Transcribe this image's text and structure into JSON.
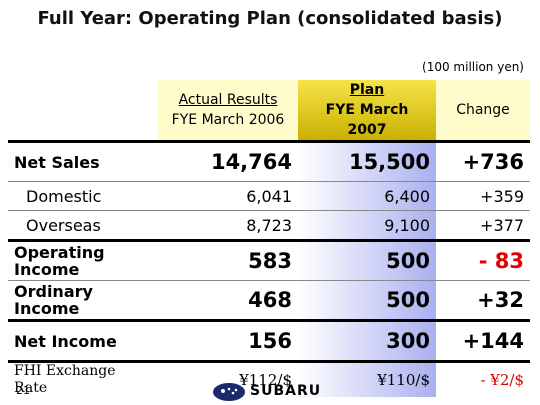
{
  "header": {
    "title": "Full Year: Operating Plan (consolidated basis)",
    "unit": "(100 million yen)"
  },
  "table": {
    "columns": [
      {
        "line1": "Actual Results",
        "line2": "FYE March 2006"
      },
      {
        "line1": "Plan",
        "line2": "FYE March 2007"
      },
      "Change"
    ],
    "rows": [
      [
        "Net Sales",
        "14,764",
        "15,500",
        "+736"
      ],
      [
        "Domestic",
        "6,041",
        "6,400",
        "+359"
      ],
      [
        "Overseas",
        "8,723",
        "9,100",
        "+377"
      ],
      [
        "Operating Income",
        "583",
        "500",
        "- 83"
      ],
      [
        "Ordinary Income",
        "468",
        "500",
        "+32"
      ],
      [
        "Net Income",
        "156",
        "300",
        "+144"
      ],
      [
        "FHI Exchange Rate",
        "¥112/$",
        "¥110/$",
        "- ¥2/$"
      ]
    ]
  },
  "footer": {
    "page": "21",
    "logo": "SUBARU"
  }
}
